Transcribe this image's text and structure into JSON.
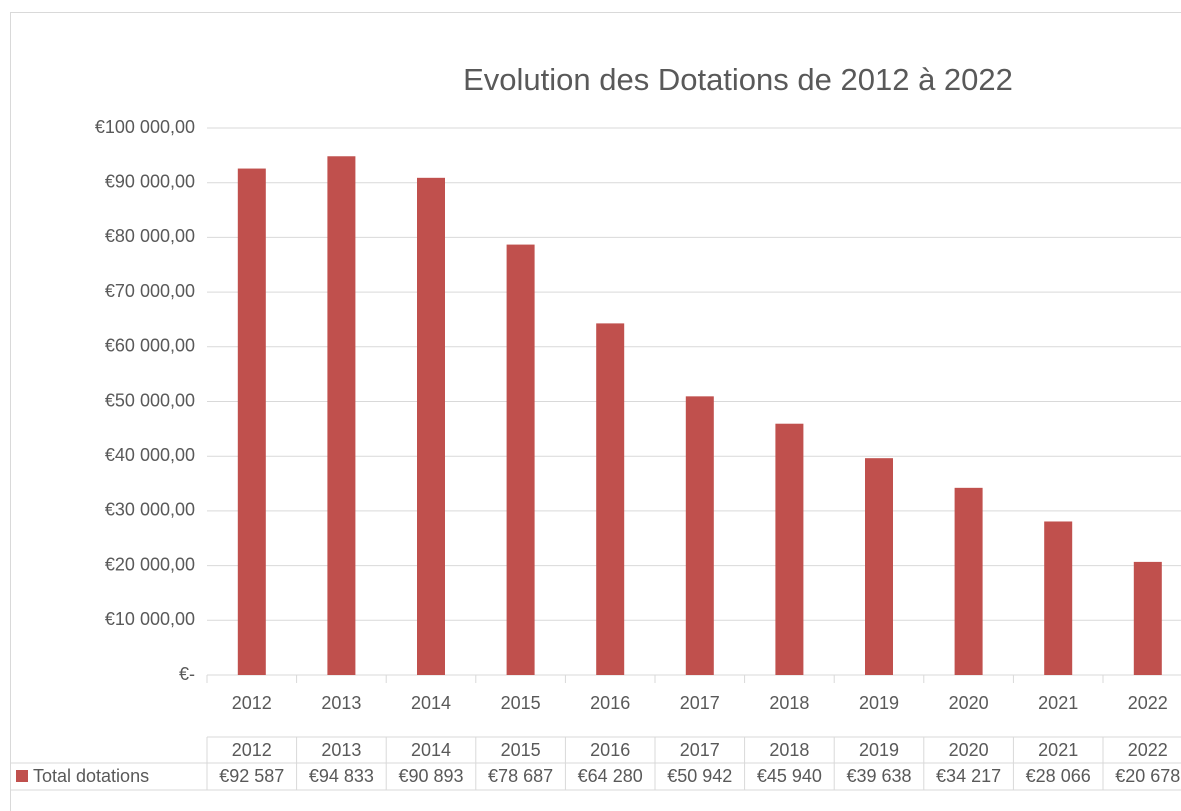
{
  "chart_data": {
    "type": "bar",
    "title": "Evolution des Dotations de 2012 à 2022",
    "categories": [
      "2012",
      "2013",
      "2014",
      "2015",
      "2016",
      "2017",
      "2018",
      "2019",
      "2020",
      "2021",
      "2022"
    ],
    "series": [
      {
        "name": "Total dotations",
        "color": "#c0504d",
        "values": [
          92587,
          94833,
          90893,
          78687,
          64280,
          50942,
          45940,
          39638,
          34217,
          28066,
          20678
        ],
        "value_labels": [
          "€92 587",
          "€94 833",
          "€90 893",
          "€78 687",
          "€64 280",
          "€50 942",
          "€45 940",
          "€39 638",
          "€34 217",
          "€28 066",
          "€20 678"
        ]
      }
    ],
    "ylim": [
      0,
      100000
    ],
    "yticks": [
      {
        "value": 0,
        "label": "€-"
      },
      {
        "value": 10000,
        "label": "€10 000,00"
      },
      {
        "value": 20000,
        "label": "€20 000,00"
      },
      {
        "value": 30000,
        "label": "€30 000,00"
      },
      {
        "value": 40000,
        "label": "€40 000,00"
      },
      {
        "value": 50000,
        "label": "€50 000,00"
      },
      {
        "value": 60000,
        "label": "€60 000,00"
      },
      {
        "value": 70000,
        "label": "€70 000,00"
      },
      {
        "value": 80000,
        "label": "€80 000,00"
      },
      {
        "value": 90000,
        "label": "€90 000,00"
      },
      {
        "value": 100000,
        "label": "€100 000,00"
      }
    ],
    "grid": true,
    "data_table": true
  }
}
